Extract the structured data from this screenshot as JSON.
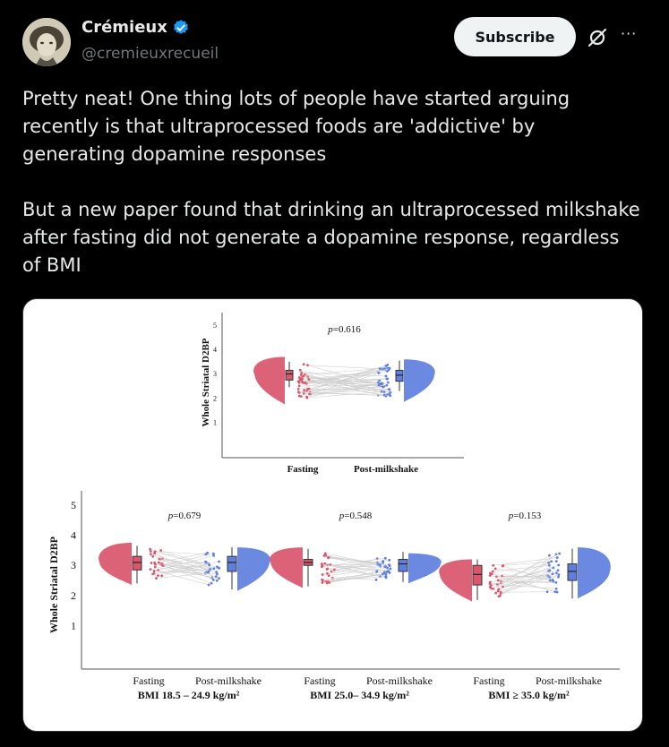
{
  "author": {
    "name": "Crémieux",
    "handle": "@cremieuxrecueil",
    "verified": true
  },
  "actions": {
    "subscribe_label": "Subscribe",
    "grok_icon": "grok-slash-icon",
    "more_icon": "more-dots-icon",
    "more_glyph": "···"
  },
  "tweet": {
    "paragraph1": "Pretty neat! One thing lots of people have started arguing recently is that ultraprocessed foods are 'addictive' by generating dopamine responses",
    "paragraph2": "But a new paper found that drinking an ultraprocessed milkshake after fasting did not generate a dopamine response, regardless of BMI"
  },
  "colors": {
    "fasting": "#d9566b",
    "milkshake": "#5f7fe0",
    "verified": "#1d9bf0"
  },
  "chart_data": [
    {
      "type": "raincloud",
      "ylabel": "Whole Striatal D2BP",
      "y_ticks": [
        "1",
        "2",
        "3",
        "4",
        "5"
      ],
      "ylim": [
        0,
        5.3
      ],
      "p_prefix": "p",
      "p_value": "=0.616",
      "categories": [
        "Fasting",
        "Post-milkshake"
      ],
      "series": [
        {
          "name": "Fasting",
          "q1": 2.75,
          "median": 3.0,
          "q3": 3.15,
          "whisker_low": 2.45,
          "whisker_high": 3.5,
          "min": 1.75,
          "max": 3.7
        },
        {
          "name": "Post-milkshake",
          "q1": 2.7,
          "median": 2.95,
          "q3": 3.15,
          "whisker_low": 2.3,
          "whisker_high": 3.55,
          "min": 1.85,
          "max": 3.6
        }
      ]
    },
    {
      "type": "raincloud-panels",
      "ylabel": "Whole Striatal D2BP",
      "y_ticks": [
        "1",
        "2",
        "3",
        "4",
        "5"
      ],
      "ylim": [
        0,
        5.3
      ],
      "p_prefix": "p",
      "panels": [
        {
          "group": "BMI 18.5 – 24.9 kg/m²",
          "p_value": "=0.679",
          "categories": [
            "Fasting",
            "Post-milkshake"
          ],
          "series": [
            {
              "name": "Fasting",
              "q1": 2.85,
              "median": 3.1,
              "q3": 3.3,
              "whisker_low": 2.4,
              "whisker_high": 3.65,
              "min": 2.35,
              "max": 3.75
            },
            {
              "name": "Post-milkshake",
              "q1": 2.8,
              "median": 3.1,
              "q3": 3.3,
              "whisker_low": 2.2,
              "whisker_high": 3.6,
              "min": 2.15,
              "max": 3.6
            }
          ]
        },
        {
          "group": "BMI 25.0– 34.9 kg/m²",
          "p_value": "=0.548",
          "categories": [
            "Fasting",
            "Post-milkshake"
          ],
          "series": [
            {
              "name": "Fasting",
              "q1": 3.0,
              "median": 3.1,
              "q3": 3.2,
              "whisker_low": 2.3,
              "whisker_high": 3.55,
              "min": 2.25,
              "max": 3.6
            },
            {
              "name": "Post-milkshake",
              "q1": 2.8,
              "median": 3.05,
              "q3": 3.2,
              "whisker_low": 2.45,
              "whisker_high": 3.45,
              "min": 2.4,
              "max": 3.4
            }
          ]
        },
        {
          "group": "BMI ≥ 35.0 kg/m²",
          "p_value": "=0.153",
          "categories": [
            "Fasting",
            "Post-milkshake"
          ],
          "series": [
            {
              "name": "Fasting",
              "q1": 2.35,
              "median": 2.7,
              "q3": 3.0,
              "whisker_low": 1.85,
              "whisker_high": 3.2,
              "min": 1.8,
              "max": 3.2
            },
            {
              "name": "Post-milkshake",
              "q1": 2.5,
              "median": 2.8,
              "q3": 3.05,
              "whisker_low": 1.9,
              "whisker_high": 3.55,
              "min": 1.9,
              "max": 3.6
            }
          ]
        }
      ]
    }
  ]
}
